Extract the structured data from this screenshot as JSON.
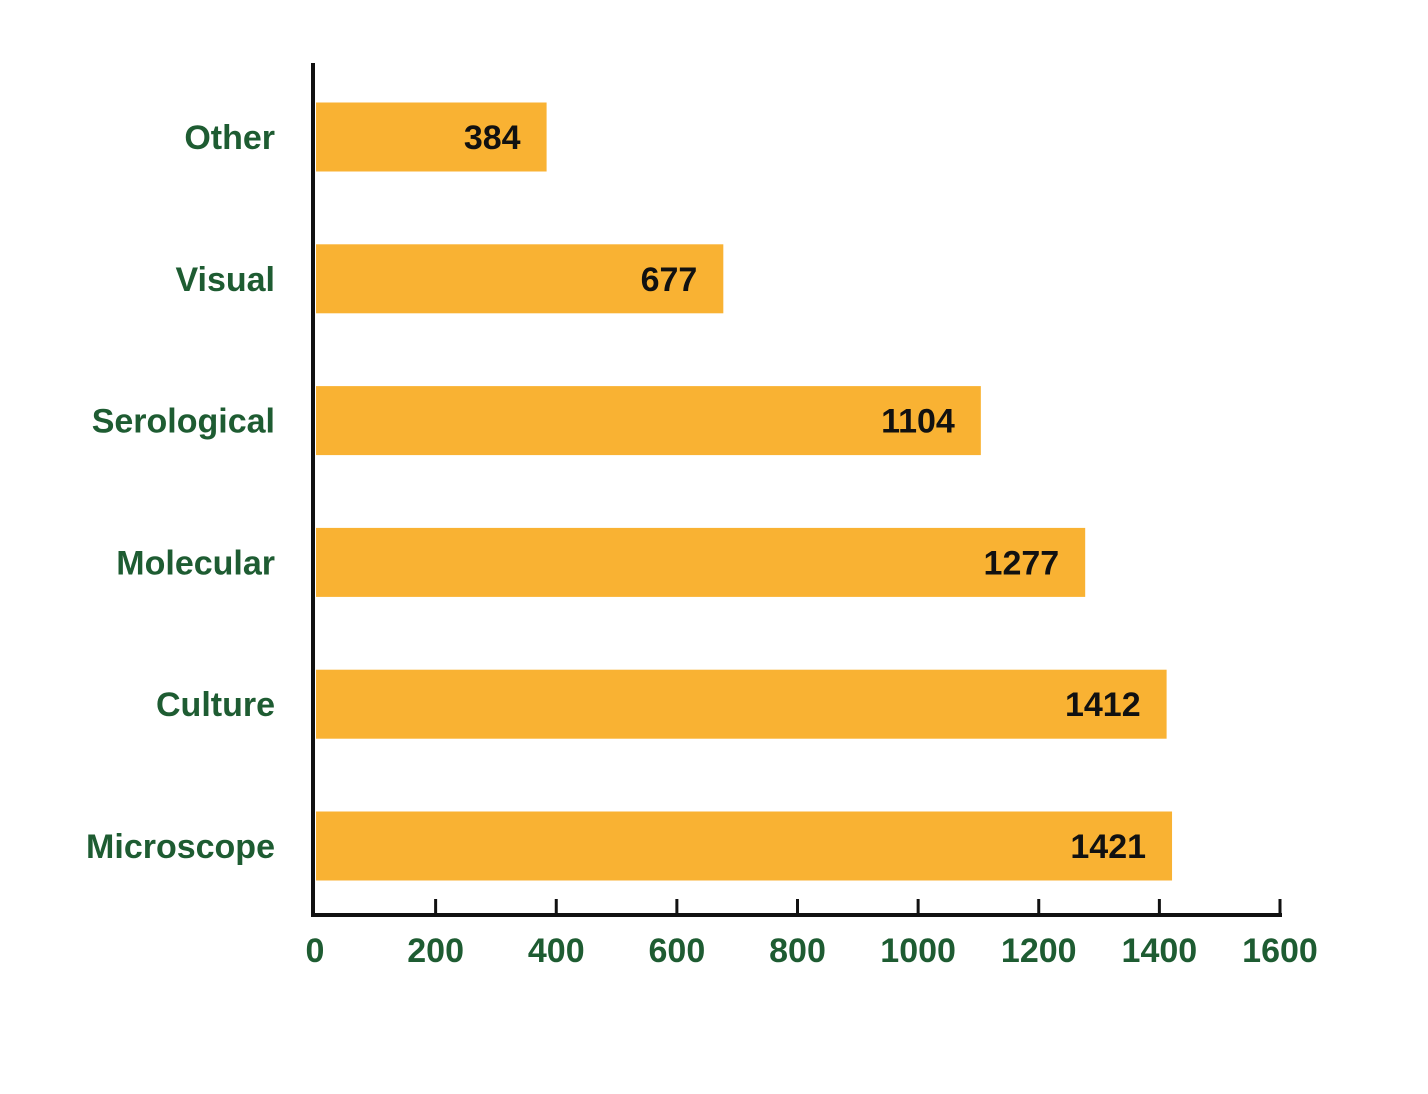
{
  "chart_data": {
    "type": "hbar",
    "categories": [
      "Other",
      "Visual",
      "Serological",
      "Molecular",
      "Culture",
      "Microscope"
    ],
    "values": [
      384,
      677,
      1104,
      1277,
      1412,
      1421
    ],
    "color": "#f9b233",
    "xlim": [
      0,
      1600
    ],
    "xticks": [
      0,
      200,
      400,
      600,
      800,
      1000,
      1200,
      1400,
      1600
    ]
  }
}
